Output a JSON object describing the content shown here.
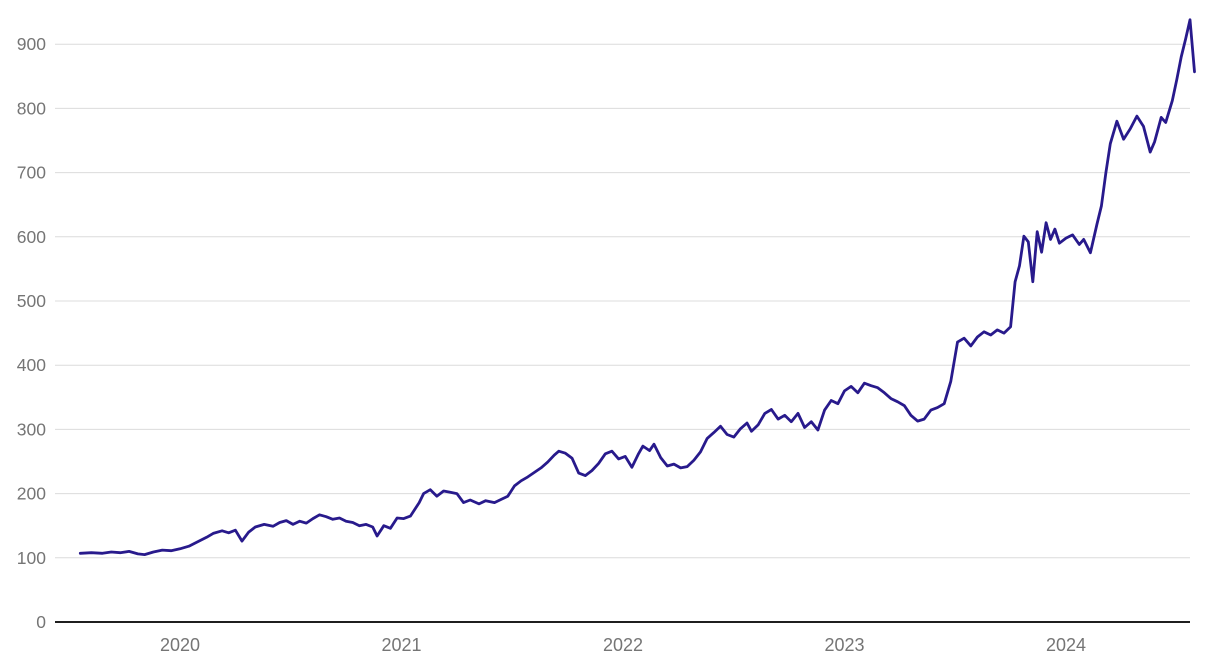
{
  "chart_data": {
    "type": "line",
    "title": "",
    "xlabel": "",
    "ylabel": "",
    "legend": "none",
    "grid": "horizontal-only",
    "x_tick_labels": [
      "2020",
      "2021",
      "2022",
      "2023",
      "2024"
    ],
    "x_tick_years": [
      2020,
      2021,
      2022,
      2023,
      2024
    ],
    "y_ticks": [
      0,
      100,
      200,
      300,
      400,
      500,
      600,
      700,
      800,
      900
    ],
    "ylim": [
      0,
      945
    ],
    "xlim": [
      2019.53,
      2024.6
    ],
    "series": [
      {
        "name": "price-line",
        "points": [
          [
            2019.55,
            107
          ],
          [
            2019.6,
            108
          ],
          [
            2019.65,
            107
          ],
          [
            2019.69,
            109
          ],
          [
            2019.73,
            108
          ],
          [
            2019.77,
            110
          ],
          [
            2019.81,
            106
          ],
          [
            2019.84,
            105
          ],
          [
            2019.88,
            109
          ],
          [
            2019.92,
            112
          ],
          [
            2019.96,
            111
          ],
          [
            2020.0,
            114
          ],
          [
            2020.04,
            118
          ],
          [
            2020.08,
            125
          ],
          [
            2020.12,
            132
          ],
          [
            2020.15,
            138
          ],
          [
            2020.19,
            142
          ],
          [
            2020.22,
            139
          ],
          [
            2020.25,
            143
          ],
          [
            2020.28,
            126
          ],
          [
            2020.31,
            140
          ],
          [
            2020.34,
            148
          ],
          [
            2020.38,
            152
          ],
          [
            2020.42,
            149
          ],
          [
            2020.45,
            155
          ],
          [
            2020.48,
            158
          ],
          [
            2020.51,
            152
          ],
          [
            2020.54,
            157
          ],
          [
            2020.57,
            154
          ],
          [
            2020.6,
            161
          ],
          [
            2020.63,
            167
          ],
          [
            2020.66,
            164
          ],
          [
            2020.69,
            160
          ],
          [
            2020.72,
            162
          ],
          [
            2020.75,
            157
          ],
          [
            2020.78,
            155
          ],
          [
            2020.81,
            150
          ],
          [
            2020.84,
            152
          ],
          [
            2020.87,
            148
          ],
          [
            2020.89,
            134
          ],
          [
            2020.92,
            150
          ],
          [
            2020.95,
            146
          ],
          [
            2020.98,
            162
          ],
          [
            2021.01,
            161
          ],
          [
            2021.04,
            165
          ],
          [
            2021.08,
            186
          ],
          [
            2021.1,
            200
          ],
          [
            2021.13,
            206
          ],
          [
            2021.16,
            196
          ],
          [
            2021.19,
            204
          ],
          [
            2021.22,
            202
          ],
          [
            2021.25,
            200
          ],
          [
            2021.28,
            186
          ],
          [
            2021.31,
            190
          ],
          [
            2021.35,
            184
          ],
          [
            2021.38,
            189
          ],
          [
            2021.42,
            186
          ],
          [
            2021.45,
            191
          ],
          [
            2021.48,
            196
          ],
          [
            2021.51,
            212
          ],
          [
            2021.54,
            220
          ],
          [
            2021.57,
            226
          ],
          [
            2021.6,
            233
          ],
          [
            2021.63,
            240
          ],
          [
            2021.66,
            249
          ],
          [
            2021.69,
            260
          ],
          [
            2021.71,
            266
          ],
          [
            2021.74,
            263
          ],
          [
            2021.77,
            255
          ],
          [
            2021.8,
            232
          ],
          [
            2021.83,
            228
          ],
          [
            2021.86,
            236
          ],
          [
            2021.89,
            247
          ],
          [
            2021.92,
            262
          ],
          [
            2021.95,
            266
          ],
          [
            2021.98,
            254
          ],
          [
            2022.01,
            258
          ],
          [
            2022.04,
            241
          ],
          [
            2022.07,
            262
          ],
          [
            2022.09,
            274
          ],
          [
            2022.12,
            267
          ],
          [
            2022.14,
            277
          ],
          [
            2022.17,
            256
          ],
          [
            2022.2,
            243
          ],
          [
            2022.23,
            246
          ],
          [
            2022.26,
            240
          ],
          [
            2022.29,
            242
          ],
          [
            2022.32,
            252
          ],
          [
            2022.35,
            265
          ],
          [
            2022.38,
            286
          ],
          [
            2022.41,
            295
          ],
          [
            2022.44,
            305
          ],
          [
            2022.47,
            292
          ],
          [
            2022.5,
            288
          ],
          [
            2022.53,
            301
          ],
          [
            2022.56,
            310
          ],
          [
            2022.58,
            297
          ],
          [
            2022.61,
            307
          ],
          [
            2022.64,
            325
          ],
          [
            2022.67,
            331
          ],
          [
            2022.7,
            316
          ],
          [
            2022.73,
            322
          ],
          [
            2022.76,
            312
          ],
          [
            2022.79,
            325
          ],
          [
            2022.82,
            303
          ],
          [
            2022.85,
            312
          ],
          [
            2022.88,
            299
          ],
          [
            2022.91,
            330
          ],
          [
            2022.94,
            345
          ],
          [
            2022.97,
            340
          ],
          [
            2023.0,
            360
          ],
          [
            2023.03,
            367
          ],
          [
            2023.06,
            357
          ],
          [
            2023.09,
            372
          ],
          [
            2023.12,
            368
          ],
          [
            2023.15,
            365
          ],
          [
            2023.18,
            357
          ],
          [
            2023.21,
            348
          ],
          [
            2023.24,
            343
          ],
          [
            2023.27,
            337
          ],
          [
            2023.3,
            322
          ],
          [
            2023.33,
            313
          ],
          [
            2023.36,
            316
          ],
          [
            2023.39,
            330
          ],
          [
            2023.42,
            334
          ],
          [
            2023.45,
            340
          ],
          [
            2023.48,
            375
          ],
          [
            2023.51,
            436
          ],
          [
            2023.54,
            442
          ],
          [
            2023.57,
            430
          ],
          [
            2023.6,
            444
          ],
          [
            2023.63,
            452
          ],
          [
            2023.66,
            447
          ],
          [
            2023.69,
            455
          ],
          [
            2023.72,
            450
          ],
          [
            2023.75,
            460
          ],
          [
            2023.77,
            530
          ],
          [
            2023.79,
            555
          ],
          [
            2023.81,
            601
          ],
          [
            2023.83,
            592
          ],
          [
            2023.85,
            530
          ],
          [
            2023.87,
            608
          ],
          [
            2023.89,
            576
          ],
          [
            2023.91,
            622
          ],
          [
            2023.93,
            596
          ],
          [
            2023.95,
            612
          ],
          [
            2023.97,
            590
          ],
          [
            2024.0,
            598
          ],
          [
            2024.03,
            603
          ],
          [
            2024.06,
            588
          ],
          [
            2024.08,
            596
          ],
          [
            2024.11,
            575
          ],
          [
            2024.14,
            620
          ],
          [
            2024.16,
            648
          ],
          [
            2024.18,
            700
          ],
          [
            2024.2,
            745
          ],
          [
            2024.23,
            780
          ],
          [
            2024.26,
            752
          ],
          [
            2024.29,
            768
          ],
          [
            2024.32,
            788
          ],
          [
            2024.35,
            772
          ],
          [
            2024.38,
            732
          ],
          [
            2024.4,
            748
          ],
          [
            2024.43,
            786
          ],
          [
            2024.45,
            778
          ],
          [
            2024.48,
            812
          ],
          [
            2024.5,
            845
          ],
          [
            2024.52,
            880
          ],
          [
            2024.54,
            908
          ],
          [
            2024.56,
            938
          ],
          [
            2024.58,
            857
          ]
        ]
      }
    ],
    "colors": {
      "line": "#281a8c",
      "grid": "#dcdcdc",
      "axis": "#1f1f1f",
      "tick_label": "#757575",
      "background": "#ffffff"
    }
  }
}
